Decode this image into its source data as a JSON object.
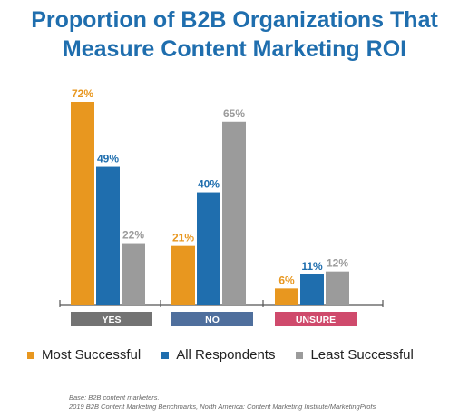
{
  "title_lines": [
    "Proportion of B2B Organizations That",
    "Measure Content Marketing ROI"
  ],
  "chart_data": {
    "type": "bar",
    "title": "Proportion of B2B Organizations That Measure Content Marketing ROI",
    "categories": [
      "YES",
      "NO",
      "UNSURE"
    ],
    "category_colors": [
      "#737373",
      "#4f6f9d",
      "#cf4a6c"
    ],
    "series": [
      {
        "name": "Most Successful",
        "values": [
          72,
          21,
          6
        ],
        "color": "#e8971f"
      },
      {
        "name": "All Respondents",
        "values": [
          49,
          40,
          11
        ],
        "color": "#1f6eae"
      },
      {
        "name": "Least Successful",
        "values": [
          22,
          65,
          12
        ],
        "color": "#9b9b9b"
      }
    ],
    "value_suffix": "%",
    "ylim": [
      0,
      80
    ],
    "legend_position": "bottom",
    "grid": false
  },
  "footnotes": [
    "Base: B2B content marketers.",
    "2019 B2B Content Marketing Benchmarks, North America: Content Marketing Institute/MarketingProfs"
  ]
}
